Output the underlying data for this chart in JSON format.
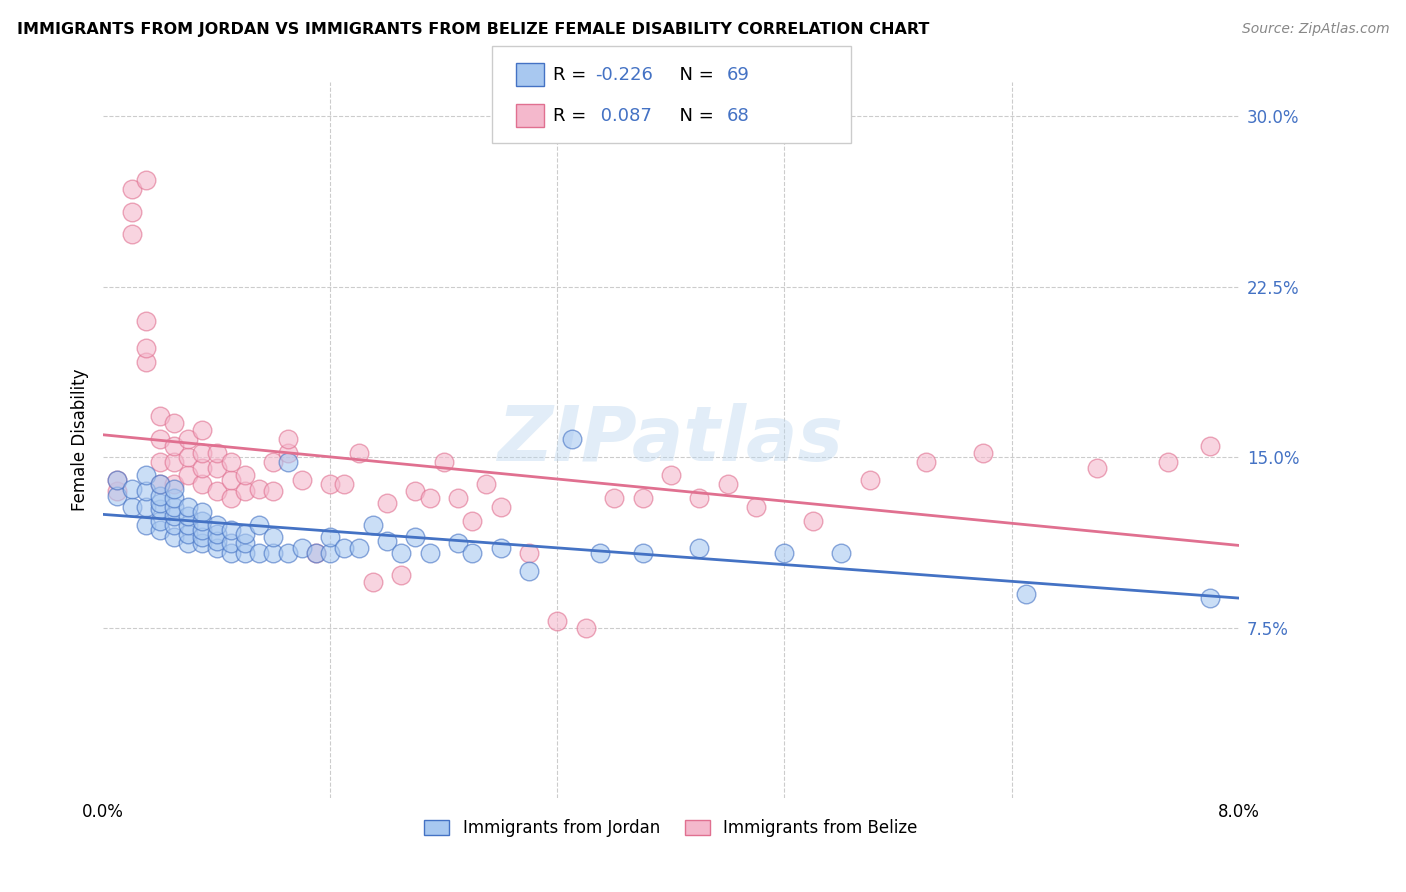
{
  "title": "IMMIGRANTS FROM JORDAN VS IMMIGRANTS FROM BELIZE FEMALE DISABILITY CORRELATION CHART",
  "source": "Source: ZipAtlas.com",
  "ylabel": "Female Disability",
  "xlim": [
    0.0,
    0.08
  ],
  "ylim": [
    0.0,
    0.315
  ],
  "yticks": [
    0.075,
    0.15,
    0.225,
    0.3
  ],
  "ytick_labels": [
    "7.5%",
    "15.0%",
    "22.5%",
    "30.0%"
  ],
  "xticks": [
    0.0,
    0.016,
    0.032,
    0.048,
    0.064,
    0.08
  ],
  "xtick_labels": [
    "0.0%",
    "",
    "",
    "",
    "",
    "8.0%"
  ],
  "jordan_color": "#a8c8f0",
  "belize_color": "#f4b8cc",
  "jordan_line_color": "#4472c4",
  "belize_line_color": "#e07090",
  "jordan_R": -0.226,
  "jordan_N": 69,
  "belize_R": 0.087,
  "belize_N": 68,
  "watermark": "ZIPatlas",
  "jordan_x": [
    0.001,
    0.001,
    0.002,
    0.002,
    0.003,
    0.003,
    0.003,
    0.003,
    0.004,
    0.004,
    0.004,
    0.004,
    0.004,
    0.004,
    0.005,
    0.005,
    0.005,
    0.005,
    0.005,
    0.005,
    0.006,
    0.006,
    0.006,
    0.006,
    0.006,
    0.007,
    0.007,
    0.007,
    0.007,
    0.007,
    0.008,
    0.008,
    0.008,
    0.008,
    0.009,
    0.009,
    0.009,
    0.01,
    0.01,
    0.01,
    0.011,
    0.011,
    0.012,
    0.012,
    0.013,
    0.013,
    0.014,
    0.015,
    0.016,
    0.016,
    0.017,
    0.018,
    0.019,
    0.02,
    0.021,
    0.022,
    0.023,
    0.025,
    0.026,
    0.028,
    0.03,
    0.033,
    0.035,
    0.038,
    0.042,
    0.048,
    0.052,
    0.065,
    0.078
  ],
  "jordan_y": [
    0.133,
    0.14,
    0.128,
    0.136,
    0.12,
    0.128,
    0.135,
    0.142,
    0.118,
    0.122,
    0.127,
    0.13,
    0.133,
    0.138,
    0.115,
    0.12,
    0.124,
    0.128,
    0.132,
    0.136,
    0.112,
    0.116,
    0.12,
    0.124,
    0.128,
    0.112,
    0.115,
    0.118,
    0.122,
    0.126,
    0.11,
    0.113,
    0.116,
    0.12,
    0.108,
    0.112,
    0.118,
    0.108,
    0.112,
    0.116,
    0.108,
    0.12,
    0.108,
    0.115,
    0.108,
    0.148,
    0.11,
    0.108,
    0.108,
    0.115,
    0.11,
    0.11,
    0.12,
    0.113,
    0.108,
    0.115,
    0.108,
    0.112,
    0.108,
    0.11,
    0.1,
    0.158,
    0.108,
    0.108,
    0.11,
    0.108,
    0.108,
    0.09,
    0.088
  ],
  "belize_x": [
    0.001,
    0.001,
    0.002,
    0.002,
    0.002,
    0.003,
    0.003,
    0.003,
    0.003,
    0.004,
    0.004,
    0.004,
    0.004,
    0.005,
    0.005,
    0.005,
    0.005,
    0.006,
    0.006,
    0.006,
    0.007,
    0.007,
    0.007,
    0.007,
    0.008,
    0.008,
    0.008,
    0.009,
    0.009,
    0.009,
    0.01,
    0.01,
    0.011,
    0.012,
    0.012,
    0.013,
    0.013,
    0.014,
    0.015,
    0.016,
    0.017,
    0.018,
    0.019,
    0.02,
    0.021,
    0.022,
    0.023,
    0.024,
    0.025,
    0.026,
    0.027,
    0.028,
    0.03,
    0.032,
    0.034,
    0.036,
    0.038,
    0.04,
    0.042,
    0.044,
    0.046,
    0.05,
    0.054,
    0.058,
    0.062,
    0.07,
    0.075,
    0.078
  ],
  "belize_y": [
    0.135,
    0.14,
    0.248,
    0.258,
    0.268,
    0.192,
    0.198,
    0.21,
    0.272,
    0.138,
    0.148,
    0.158,
    0.168,
    0.138,
    0.148,
    0.155,
    0.165,
    0.142,
    0.15,
    0.158,
    0.138,
    0.145,
    0.152,
    0.162,
    0.135,
    0.145,
    0.152,
    0.132,
    0.14,
    0.148,
    0.135,
    0.142,
    0.136,
    0.135,
    0.148,
    0.152,
    0.158,
    0.14,
    0.108,
    0.138,
    0.138,
    0.152,
    0.095,
    0.13,
    0.098,
    0.135,
    0.132,
    0.148,
    0.132,
    0.122,
    0.138,
    0.128,
    0.108,
    0.078,
    0.075,
    0.132,
    0.132,
    0.142,
    0.132,
    0.138,
    0.128,
    0.122,
    0.14,
    0.148,
    0.152,
    0.145,
    0.148,
    0.155
  ]
}
